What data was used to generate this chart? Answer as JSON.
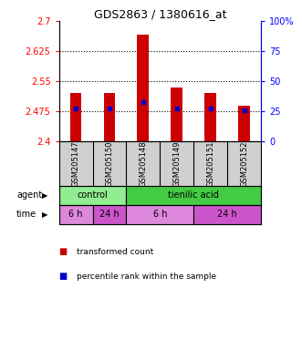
{
  "title": "GDS2863 / 1380616_at",
  "samples": [
    "GSM205147",
    "GSM205150",
    "GSM205148",
    "GSM205149",
    "GSM205151",
    "GSM205152"
  ],
  "bar_bottoms": [
    2.4,
    2.4,
    2.4,
    2.4,
    2.4,
    2.4
  ],
  "bar_tops": [
    2.52,
    2.52,
    2.665,
    2.535,
    2.52,
    2.49
  ],
  "percentile_values": [
    2.483,
    2.483,
    2.498,
    2.483,
    2.483,
    2.478
  ],
  "ylim": [
    2.4,
    2.7
  ],
  "yticks_left": [
    2.4,
    2.475,
    2.55,
    2.625,
    2.7
  ],
  "yticks_right": [
    0,
    25,
    50,
    75,
    100
  ],
  "ytick_labels_left": [
    "2.4",
    "2.475",
    "2.55",
    "2.625",
    "2.7"
  ],
  "ytick_labels_right": [
    "0",
    "25",
    "50",
    "75",
    "100%"
  ],
  "bar_color": "#cc0000",
  "percentile_color": "#0000cc",
  "agent_row": [
    {
      "label": "control",
      "span": [
        0,
        2
      ],
      "color": "#90ee90"
    },
    {
      "label": "tienilic acid",
      "span": [
        2,
        6
      ],
      "color": "#44cc44"
    }
  ],
  "time_row": [
    {
      "label": "6 h",
      "span": [
        0,
        1
      ],
      "color": "#dd88dd"
    },
    {
      "label": "24 h",
      "span": [
        1,
        2
      ],
      "color": "#cc55cc"
    },
    {
      "label": "6 h",
      "span": [
        2,
        4
      ],
      "color": "#dd88dd"
    },
    {
      "label": "24 h",
      "span": [
        4,
        6
      ],
      "color": "#cc55cc"
    }
  ],
  "legend_bar_color": "#cc0000",
  "legend_percentile_color": "#0000cc",
  "sample_bg_color": "#d0d0d0",
  "bar_width": 0.35
}
